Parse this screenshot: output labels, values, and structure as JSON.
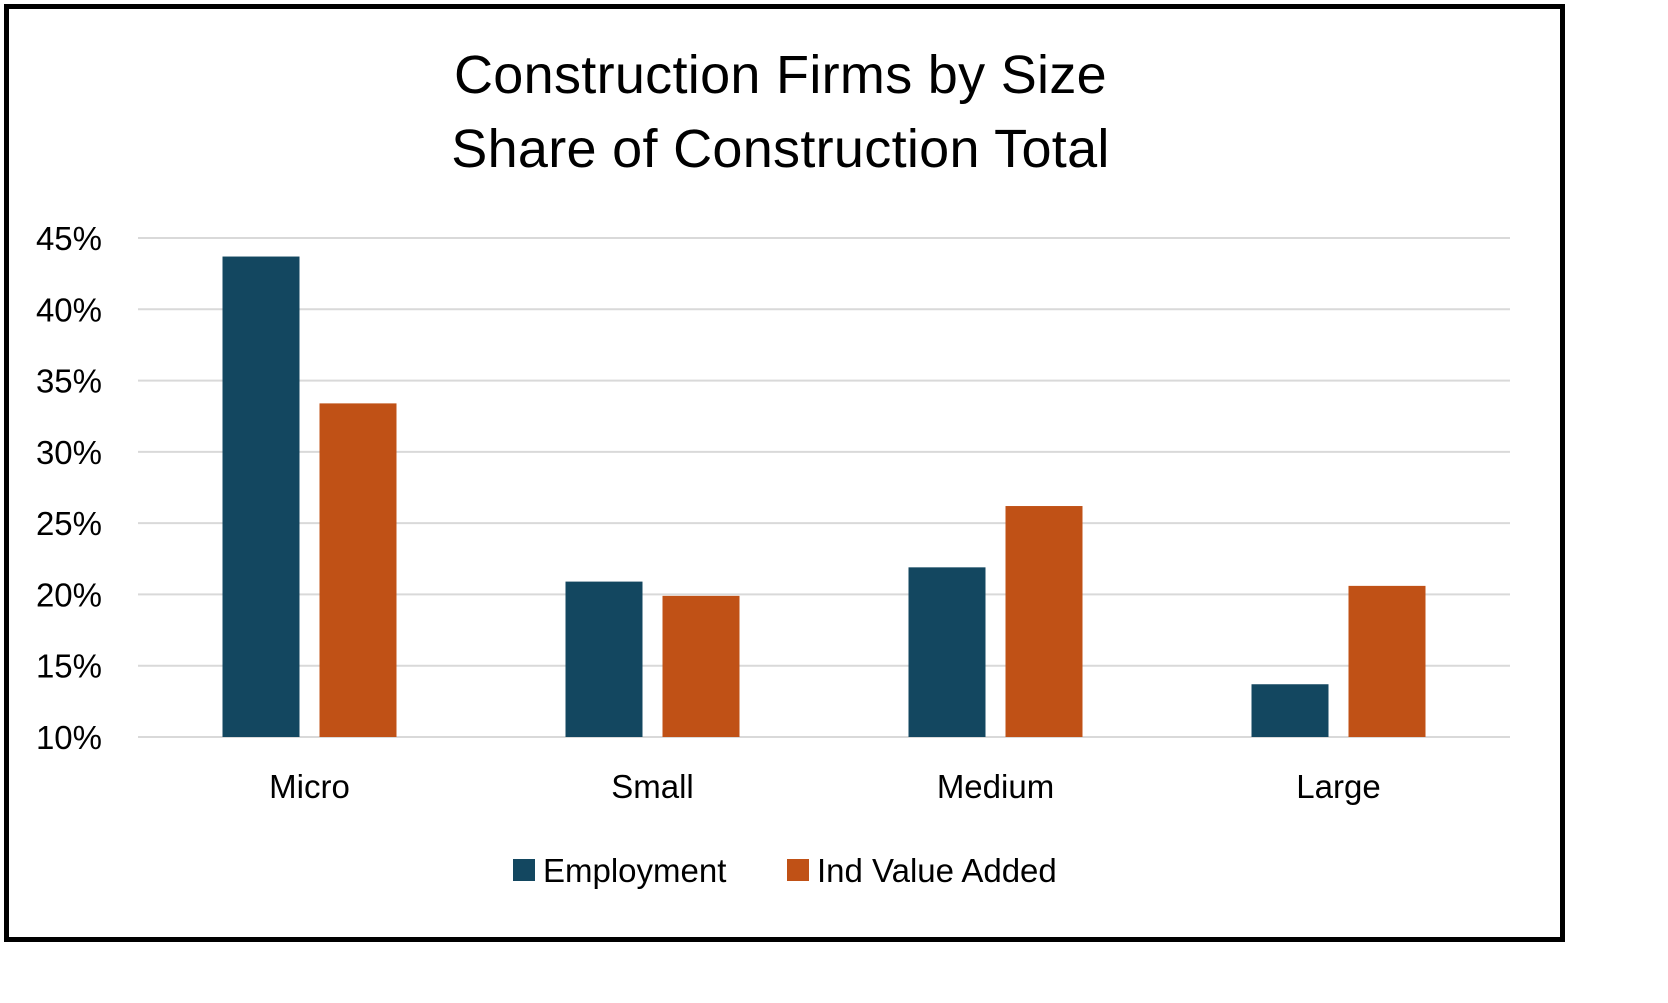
{
  "chart_data": {
    "type": "bar",
    "title": "Construction Firms  by Size",
    "subtitle": "Share of Construction Total",
    "categories": [
      "Micro",
      "Small",
      "Medium",
      "Large"
    ],
    "series": [
      {
        "name": "Employment",
        "color": "#134760",
        "values": [
          43.7,
          20.9,
          21.9,
          13.7
        ]
      },
      {
        "name": "Ind Value Added",
        "color": "#c05116",
        "values": [
          33.4,
          19.9,
          26.2,
          20.6
        ]
      }
    ],
    "ylim": [
      10,
      45
    ],
    "yticks": [
      10,
      15,
      20,
      25,
      30,
      35,
      40,
      45
    ],
    "ytick_labels": [
      "10%",
      "15%",
      "20%",
      "25%",
      "30%",
      "35%",
      "40%",
      "45%"
    ],
    "grid": true,
    "legend": "bottom",
    "gridline_color": "#d9d9d9"
  }
}
